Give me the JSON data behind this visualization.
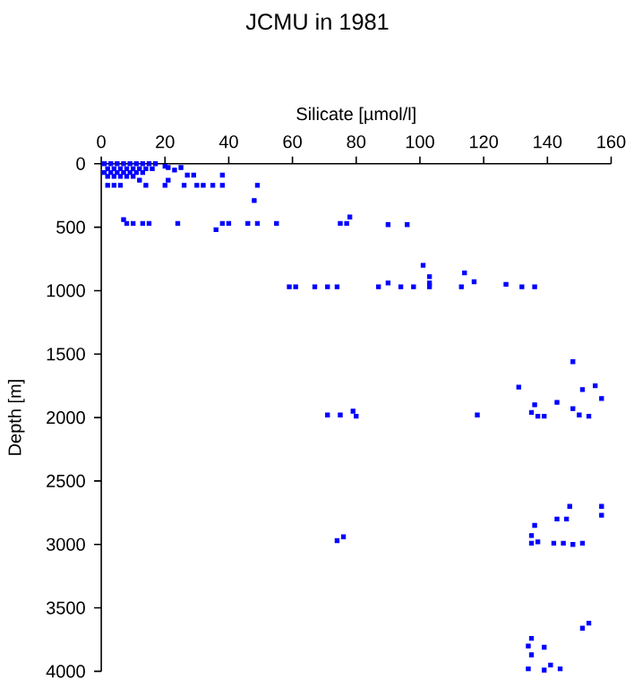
{
  "chart_data": {
    "type": "scatter",
    "title": "JCMU in 1981",
    "xlabel": "Silicate [µmol/l]",
    "ylabel": "Depth [m]",
    "xlim": [
      0,
      160
    ],
    "xticks": [
      0,
      20,
      40,
      60,
      80,
      100,
      120,
      140,
      160
    ],
    "ylim": [
      4000,
      0
    ],
    "yticks": [
      0,
      500,
      1000,
      1500,
      2000,
      2500,
      3000,
      3500,
      4000
    ],
    "grid": false,
    "marker": "square",
    "series": [
      {
        "color": "#0000ff",
        "x": [
          1,
          3,
          5,
          7,
          9,
          11,
          13,
          15,
          17,
          2,
          4,
          6,
          8,
          10,
          12,
          14,
          16,
          1,
          3,
          5,
          7,
          9,
          11,
          13,
          2,
          4,
          6,
          8,
          10,
          20,
          21,
          23,
          25,
          27,
          29,
          38,
          12,
          2,
          4,
          6,
          14,
          20,
          21,
          26,
          30,
          32,
          35,
          38,
          49,
          48,
          7,
          8,
          10,
          13,
          15,
          24,
          36,
          38,
          40,
          46,
          49,
          55,
          75,
          77,
          78,
          90,
          96,
          59,
          61,
          67,
          71,
          74,
          87,
          90,
          94,
          98,
          103,
          103,
          103,
          113,
          114,
          117,
          127,
          132,
          136,
          101,
          148,
          131,
          136,
          135,
          137,
          139,
          143,
          148,
          151,
          155,
          157,
          150,
          153,
          71,
          75,
          79,
          80,
          118,
          74,
          76,
          147,
          157,
          157,
          143,
          146,
          136,
          135,
          137,
          135,
          142,
          145,
          148,
          151,
          153,
          151,
          135,
          134,
          139,
          135,
          134,
          139,
          141,
          144
        ],
        "values": [
          0,
          0,
          0,
          0,
          0,
          0,
          0,
          0,
          0,
          40,
          40,
          40,
          40,
          40,
          40,
          40,
          40,
          70,
          70,
          70,
          70,
          70,
          70,
          70,
          100,
          100,
          100,
          100,
          100,
          20,
          30,
          50,
          30,
          90,
          90,
          90,
          130,
          170,
          170,
          170,
          170,
          170,
          130,
          170,
          170,
          170,
          170,
          170,
          170,
          290,
          440,
          470,
          470,
          470,
          470,
          470,
          520,
          470,
          470,
          470,
          470,
          470,
          470,
          470,
          420,
          480,
          480,
          970,
          970,
          970,
          970,
          970,
          970,
          940,
          970,
          970,
          890,
          940,
          970,
          970,
          860,
          930,
          950,
          970,
          970,
          800,
          1560,
          1760,
          1900,
          1960,
          1990,
          1990,
          1880,
          1930,
          1780,
          1750,
          1850,
          1980,
          1990,
          1980,
          1980,
          1950,
          1990,
          1980,
          2970,
          2940,
          2700,
          2700,
          2770,
          2800,
          2800,
          2850,
          2930,
          2980,
          2990,
          2990,
          2990,
          3000,
          2990,
          3620,
          3660,
          3740,
          3800,
          3810,
          3870,
          3980,
          3990,
          3950,
          3980
        ]
      }
    ]
  }
}
